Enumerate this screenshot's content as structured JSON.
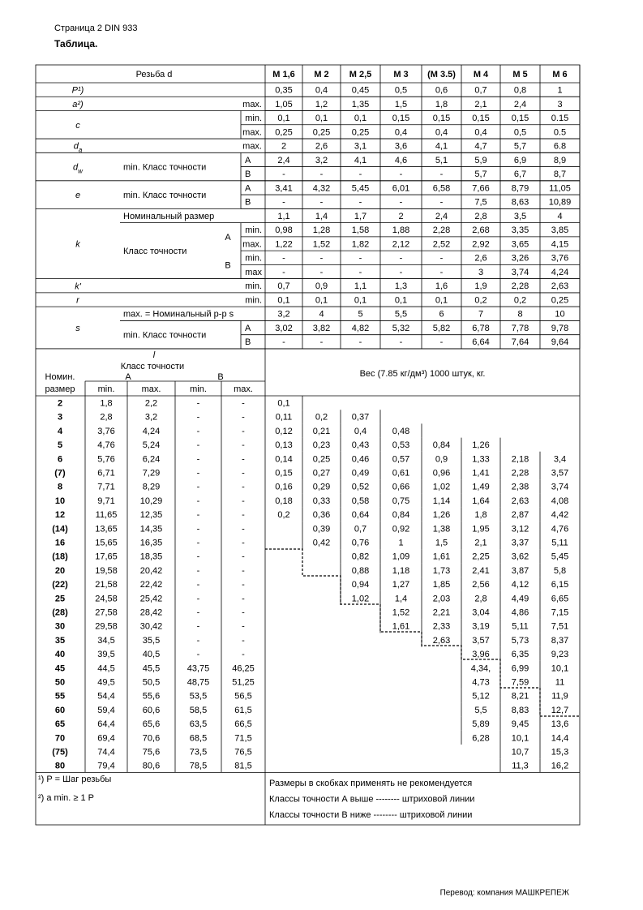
{
  "header": {
    "page": "Страница 2 DIN 933",
    "title": "Таблица."
  },
  "top": {
    "thread": "Резьба d",
    "sizes": [
      "M 1,6",
      "M 2",
      "M 2,5",
      "M 3",
      "(M 3.5)",
      "M 4",
      "M 5",
      "M 6"
    ],
    "groups": [
      {
        "symbol": "P¹)",
        "rows": [
          {
            "values": [
              "0,35",
              "0,4",
              "0,45",
              "0,5",
              "0,6",
              "0,7",
              "0,8",
              "1"
            ]
          }
        ]
      },
      {
        "symbol": "a²)",
        "rows": [
          {
            "limit": "max.",
            "values": [
              "1,05",
              "1,2",
              "1,35",
              "1,5",
              "1,8",
              "2,1",
              "2,4",
              "3"
            ]
          }
        ]
      },
      {
        "symbol": "c",
        "rows": [
          {
            "limit": "min.",
            "values": [
              "0,1",
              "0,1",
              "0,1",
              "0,15",
              "0,15",
              "0,15",
              "0,15",
              "0.15"
            ]
          },
          {
            "limit": "max.",
            "values": [
              "0,25",
              "0,25",
              "0,25",
              "0,4",
              "0,4",
              "0,4",
              "0,5",
              "0.5"
            ]
          }
        ]
      },
      {
        "symbol": "d",
        "index": "a",
        "rows": [
          {
            "limit": "max.",
            "values": [
              "2",
              "2,6",
              "3,1",
              "3,6",
              "4,1",
              "4,7",
              "5,7",
              "6.8"
            ]
          }
        ]
      },
      {
        "symbol": "d",
        "index": "w",
        "text": "min. Класс точности",
        "rows": [
          {
            "class": "A",
            "values": [
              "2,4",
              "3,2",
              "4,1",
              "4,6",
              "5,1",
              "5,9",
              "6,9",
              "8,9"
            ]
          },
          {
            "class": "B",
            "values": [
              "-",
              "-",
              "-",
              "-",
              "-",
              "5,7",
              "6,7",
              "8,7"
            ]
          }
        ]
      },
      {
        "symbol": "e",
        "text": "min. Класс точности",
        "rows": [
          {
            "class": "A",
            "values": [
              "3,41",
              "4,32",
              "5,45",
              "6,01",
              "6,58",
              "7,66",
              "8,79",
              "11,05"
            ]
          },
          {
            "class": "B",
            "values": [
              "-",
              "-",
              "-",
              "-",
              "-",
              "7,5",
              "8,63",
              "10,89"
            ]
          }
        ]
      },
      {
        "symbol": "k",
        "rows": [
          {
            "text": "Номинальный размер",
            "values": [
              "1,1",
              "1,4",
              "1,7",
              "2",
              "2,4",
              "2,8",
              "3,5",
              "4"
            ]
          },
          {
            "text": "Класс точности",
            "rows": [
              {
                "class": "A",
                "rows": [
                  {
                    "limit": "min.",
                    "values": [
                      "0,98",
                      "1,28",
                      "1,58",
                      "1,88",
                      "2,28",
                      "2,68",
                      "3,35",
                      "3,85"
                    ]
                  },
                  {
                    "limit": "max.",
                    "values": [
                      "1,22",
                      "1,52",
                      "1,82",
                      "2,12",
                      "2,52",
                      "2,92",
                      "3,65",
                      "4,15"
                    ]
                  }
                ]
              },
              {
                "class": "B",
                "rows": [
                  {
                    "limit": "min.",
                    "values": [
                      "-",
                      "-",
                      "-",
                      "-",
                      "-",
                      "2,6",
                      "3,26",
                      "3,76"
                    ]
                  },
                  {
                    "limit": "max",
                    "values": [
                      "-",
                      "-",
                      "-",
                      "-",
                      "-",
                      "3",
                      "3,74",
                      "4,24"
                    ]
                  }
                ]
              }
            ]
          }
        ]
      },
      {
        "symbol": "k'",
        "rows": [
          {
            "limit": "min.",
            "values": [
              "0,7",
              "0,9",
              "1,1",
              "1,3",
              "1,6",
              "1,9",
              "2,28",
              "2,63"
            ]
          }
        ]
      },
      {
        "symbol": "r",
        "rows": [
          {
            "limit": "min.",
            "values": [
              "0,1",
              "0,1",
              "0,1",
              "0,1",
              "0,1",
              "0,2",
              "0,2",
              "0,25"
            ]
          }
        ]
      },
      {
        "symbol": "s",
        "rows": [
          {
            "text": "max. = Номинальный р-р s",
            "values": [
              "3,2",
              "4",
              "5",
              "5,5",
              "6",
              "7",
              "8",
              "10"
            ]
          },
          {
            "text": "min. Класс точности",
            "rows": [
              {
                "class": "A",
                "values": [
                  "3,02",
                  "3,82",
                  "4,82",
                  "5,32",
                  "5,82",
                  "6,78",
                  "7,78",
                  "9,78"
                ]
              },
              {
                "class": "B",
                "values": [
                  "-",
                  "-",
                  "-",
                  "-",
                  "-",
                  "6,64",
                  "7,64",
                  "9,64"
                ]
              }
            ]
          }
        ]
      }
    ]
  },
  "bottom": {
    "length": "l",
    "class": "Класс точности",
    "a": "A",
    "b": "B",
    "nominal": "Номин.",
    "size": "размер",
    "limits": [
      "min.",
      "max.",
      "min.",
      "max."
    ],
    "weight": "Вес (7.85 кг/дм³) 1000 штук, кг.",
    "rows": [
      {
        "size": "2",
        "l": [
          "1,8",
          "2,2",
          "-",
          "-"
        ],
        "w": [
          "0,1",
          null,
          null,
          null,
          null,
          null,
          null,
          null
        ]
      },
      {
        "size": "3",
        "l": [
          "2,8",
          "3,2",
          "-",
          "-"
        ],
        "w": [
          "0,11",
          "0,2",
          "0,37",
          null,
          null,
          null,
          null,
          null
        ]
      },
      {
        "size": "4",
        "l": [
          "3,76",
          "4,24",
          "-",
          "-"
        ],
        "w": [
          "0,12",
          "0,21",
          "0,4",
          "0,48",
          null,
          null,
          null,
          null
        ]
      },
      {
        "size": "5",
        "l": [
          "4,76",
          "5,24",
          "-",
          "-"
        ],
        "w": [
          "0,13",
          "0,23",
          "0,43",
          "0,53",
          "0,84",
          "1,26",
          null,
          null
        ]
      },
      {
        "size": "6",
        "l": [
          "5,76",
          "6,24",
          "-",
          "-"
        ],
        "w": [
          "0,14",
          "0,25",
          "0,46",
          "0,57",
          "0,9",
          "1,33",
          "2,18",
          "3,4"
        ]
      },
      {
        "size": "(7)",
        "l": [
          "6,71",
          "7,29",
          "-",
          "-"
        ],
        "w": [
          "0,15",
          "0,27",
          "0,49",
          "0,61",
          "0,96",
          "1,41",
          "2,28",
          "3,57"
        ]
      },
      {
        "size": "8",
        "l": [
          "7,71",
          "8,29",
          "-",
          "-"
        ],
        "w": [
          "0,16",
          "0,29",
          "0,52",
          "0,66",
          "1,02",
          "1,49",
          "2,38",
          "3,74"
        ]
      },
      {
        "size": "10",
        "l": [
          "9,71",
          "10,29",
          "-",
          "-"
        ],
        "w": [
          "0,18",
          "0,33",
          "0,58",
          "0,75",
          "1,14",
          "1,64",
          "2,63",
          "4,08"
        ]
      },
      {
        "size": "12",
        "l": [
          "11,65",
          "12,35",
          "-",
          "-"
        ],
        "w": [
          "0,2",
          "0,36",
          "0,64",
          "0,84",
          "1,26",
          "1,8",
          "2,87",
          "4,42"
        ]
      },
      {
        "size": "(14)",
        "l": [
          "13,65",
          "14,35",
          "-",
          "-"
        ],
        "w": [
          null,
          "0,39",
          "0,7",
          "0,92",
          "1,38",
          "1,95",
          "3,12",
          "4,76"
        ]
      },
      {
        "size": "16",
        "l": [
          "15,65",
          "16,35",
          "-",
          "-"
        ],
        "w": [
          null,
          "0,42",
          "0,76",
          "1",
          "1,5",
          "2,1",
          "3,37",
          "5,11"
        ]
      },
      {
        "size": "(18)",
        "l": [
          "17,65",
          "18,35",
          "-",
          "-"
        ],
        "w": [
          null,
          null,
          "0,82",
          "1,09",
          "1,61",
          "2,25",
          "3,62",
          "5,45"
        ]
      },
      {
        "size": "20",
        "l": [
          "19,58",
          "20,42",
          "-",
          "-"
        ],
        "w": [
          null,
          null,
          "0,88",
          "1,18",
          "1,73",
          "2,41",
          "3,87",
          "5,8"
        ]
      },
      {
        "size": "(22)",
        "l": [
          "21,58",
          "22,42",
          "-",
          "-"
        ],
        "w": [
          null,
          null,
          "0,94",
          "1,27",
          "1,85",
          "2,56",
          "4,12",
          "6,15"
        ]
      },
      {
        "size": "25",
        "l": [
          "24,58",
          "25,42",
          "-",
          "-"
        ],
        "w": [
          null,
          null,
          "1,02",
          "1,4",
          "2,03",
          "2,8",
          "4,49",
          "6,65"
        ]
      },
      {
        "size": "(28)",
        "l": [
          "27,58",
          "28,42",
          "-",
          "-"
        ],
        "w": [
          null,
          null,
          null,
          "1,52",
          "2,21",
          "3,04",
          "4,86",
          "7,15"
        ]
      },
      {
        "size": "30",
        "l": [
          "29,58",
          "30,42",
          "-",
          "-"
        ],
        "w": [
          null,
          null,
          null,
          "1,61",
          "2,33",
          "3,19",
          "5,11",
          "7,51"
        ]
      },
      {
        "size": "35",
        "l": [
          "34,5",
          "35,5",
          "-",
          "-"
        ],
        "w": [
          null,
          null,
          null,
          null,
          "2,63",
          "3,57",
          "5,73",
          "8,37"
        ]
      },
      {
        "size": "40",
        "l": [
          "39,5",
          "40,5",
          "-",
          "-"
        ],
        "w": [
          null,
          null,
          null,
          null,
          null,
          "3,96",
          "6,35",
          "9,23"
        ]
      },
      {
        "size": "45",
        "l": [
          "44,5",
          "45,5",
          "43,75",
          "46,25"
        ],
        "w": [
          null,
          null,
          null,
          null,
          null,
          "4,34,",
          "6,99",
          "10,1"
        ]
      },
      {
        "size": "50",
        "l": [
          "49,5",
          "50,5",
          "48,75",
          "51,25"
        ],
        "w": [
          null,
          null,
          null,
          null,
          null,
          "4,73",
          "7,59",
          "11"
        ]
      },
      {
        "size": "55",
        "l": [
          "54,4",
          "55,6",
          "53,5",
          "56,5"
        ],
        "w": [
          null,
          null,
          null,
          null,
          null,
          "5,12",
          "8,21",
          "11,9"
        ]
      },
      {
        "size": "60",
        "l": [
          "59,4",
          "60,6",
          "58,5",
          "61,5"
        ],
        "w": [
          null,
          null,
          null,
          null,
          null,
          "5,5",
          "8,83",
          "12,7"
        ]
      },
      {
        "size": "65",
        "l": [
          "64,4",
          "65,6",
          "63,5",
          "66,5"
        ],
        "w": [
          null,
          null,
          null,
          null,
          null,
          "5,89",
          "9,45",
          "13,6"
        ]
      },
      {
        "size": "70",
        "l": [
          "69,4",
          "70,6",
          "68,5",
          "71,5"
        ],
        "w": [
          null,
          null,
          null,
          null,
          null,
          "6,28",
          "10,1",
          "14,4"
        ]
      },
      {
        "size": "(75)",
        "l": [
          "74,4",
          "75,6",
          "73,5",
          "76,5"
        ],
        "w": [
          null,
          null,
          null,
          null,
          null,
          null,
          "10,7",
          "15,3"
        ]
      },
      {
        "size": "80",
        "l": [
          "79,4",
          "80,6",
          "78,5",
          "81,5"
        ],
        "w": [
          null,
          null,
          null,
          null,
          null,
          null,
          "11,3",
          "16,2"
        ]
      }
    ]
  },
  "notes": {
    "footnotes": [
      "¹) P = Шаг резьбы",
      "²) a min. ≥ 1 P"
    ],
    "remarks": [
      "Размеры в скобках применять не рекомендуется",
      "Классы точности А выше -------- штриховой линии",
      "Классы точности В ниже -------- штриховой линии"
    ]
  },
  "footer": "Перевод: компания МАШКРЕПЕЖ"
}
